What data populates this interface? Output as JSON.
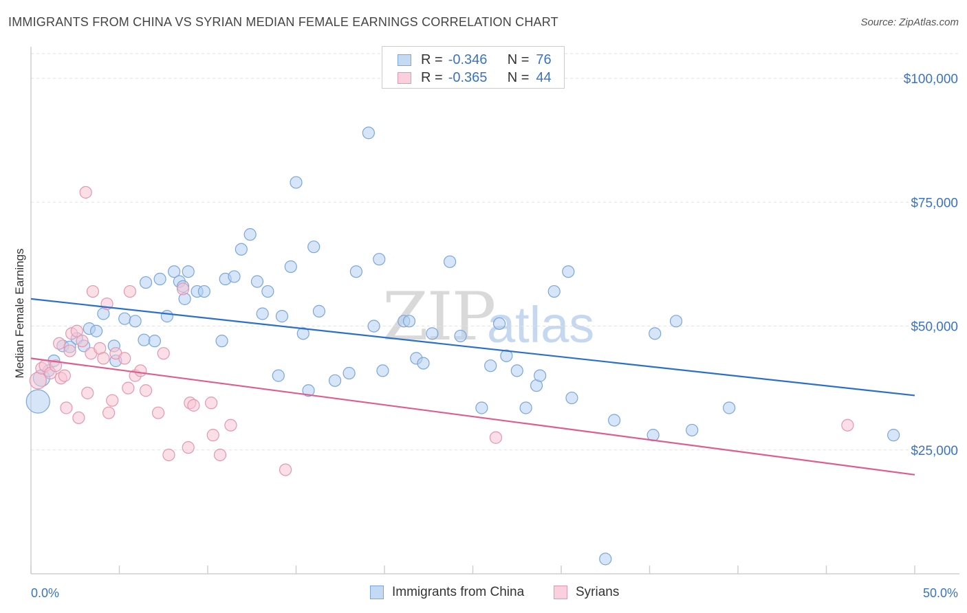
{
  "title": "IMMIGRANTS FROM CHINA VS SYRIAN MEDIAN FEMALE EARNINGS CORRELATION CHART",
  "source": "Source: ZipAtlas.com",
  "watermark": {
    "zip": "ZIP",
    "atlas": "atlas"
  },
  "legend": {
    "rows": [
      {
        "r_label": "R =",
        "r_value": "-0.346",
        "n_label": "N =",
        "n_value": "76",
        "color": "#a8c8f0",
        "border": "#7aa6dc"
      },
      {
        "r_label": "R =",
        "r_value": "-0.365",
        "n_label": "N =",
        "n_value": "44",
        "color": "#f8c4d4",
        "border": "#e696b0"
      }
    ]
  },
  "bottom_legend": [
    {
      "label": "Immigrants from China",
      "color": "#c4d9f4",
      "border": "#7aa6dc"
    },
    {
      "label": "Syrians",
      "color": "#f9d0dc",
      "border": "#e696b0"
    }
  ],
  "chart_data": {
    "type": "scatter",
    "title": "IMMIGRANTS FROM CHINA VS SYRIAN MEDIAN FEMALE EARNINGS CORRELATION CHART",
    "xlabel": "",
    "ylabel": "Median Female Earnings",
    "xlim": [
      0,
      50
    ],
    "ylim": [
      0,
      105000
    ],
    "x_tick_labels": [
      "0.0%",
      "50.0%"
    ],
    "y_ticks": [
      25000,
      50000,
      75000,
      100000
    ],
    "y_tick_labels": [
      "$25,000",
      "$50,000",
      "$75,000",
      "$100,000"
    ],
    "grid": true,
    "legend_position": "top-center",
    "series": [
      {
        "name": "Immigrants from China",
        "color": "#7aa6dc",
        "fill": "#b4cff0",
        "trend": {
          "x": [
            0,
            50
          ],
          "y": [
            55500,
            36000
          ],
          "color": "#2a6fcc"
        },
        "points": [
          [
            0.4,
            34800,
            "big"
          ],
          [
            0.6,
            39500,
            "med"
          ],
          [
            1.0,
            41000
          ],
          [
            1.3,
            43000
          ],
          [
            1.8,
            46000
          ],
          [
            2.2,
            45800
          ],
          [
            2.6,
            47500
          ],
          [
            3.0,
            46000
          ],
          [
            3.3,
            49500
          ],
          [
            3.7,
            49000
          ],
          [
            4.1,
            52500
          ],
          [
            4.7,
            46000
          ],
          [
            4.8,
            43000
          ],
          [
            5.3,
            51500
          ],
          [
            5.9,
            51000
          ],
          [
            6.4,
            47200
          ],
          [
            6.5,
            58800
          ],
          [
            7.0,
            47000
          ],
          [
            7.3,
            59500
          ],
          [
            7.7,
            52000
          ],
          [
            8.1,
            61000
          ],
          [
            8.4,
            59000
          ],
          [
            8.6,
            58000
          ],
          [
            8.7,
            55500
          ],
          [
            8.9,
            61000
          ],
          [
            9.4,
            57000
          ],
          [
            9.8,
            57000
          ],
          [
            10.8,
            47000
          ],
          [
            11.0,
            59500
          ],
          [
            11.5,
            60000
          ],
          [
            11.9,
            65500
          ],
          [
            12.4,
            68500
          ],
          [
            12.8,
            59000
          ],
          [
            13.1,
            52500
          ],
          [
            13.4,
            57000
          ],
          [
            14.0,
            40000
          ],
          [
            14.2,
            52000
          ],
          [
            14.7,
            62000
          ],
          [
            15.0,
            79000
          ],
          [
            15.4,
            48500
          ],
          [
            15.7,
            37000
          ],
          [
            16.0,
            66000
          ],
          [
            16.3,
            53000
          ],
          [
            17.2,
            39000
          ],
          [
            18.0,
            40500
          ],
          [
            18.4,
            61000
          ],
          [
            19.1,
            89000
          ],
          [
            19.4,
            50000
          ],
          [
            19.7,
            63500
          ],
          [
            19.9,
            41000
          ],
          [
            21.1,
            51000
          ],
          [
            21.4,
            51000
          ],
          [
            21.8,
            43500
          ],
          [
            22.2,
            42500
          ],
          [
            22.7,
            48500
          ],
          [
            23.7,
            63000
          ],
          [
            24.3,
            48000
          ],
          [
            25.5,
            33500
          ],
          [
            26.0,
            42000
          ],
          [
            26.5,
            50500
          ],
          [
            26.9,
            44000
          ],
          [
            27.5,
            41000
          ],
          [
            28.0,
            33500
          ],
          [
            28.6,
            38000
          ],
          [
            28.8,
            40000
          ],
          [
            29.6,
            57000
          ],
          [
            30.4,
            61000
          ],
          [
            30.6,
            35500
          ],
          [
            32.5,
            3000
          ],
          [
            33.0,
            31000
          ],
          [
            35.2,
            28000
          ],
          [
            35.3,
            48500
          ],
          [
            36.5,
            51000
          ],
          [
            37.4,
            29000
          ],
          [
            39.5,
            33500
          ],
          [
            48.8,
            28000
          ]
        ]
      },
      {
        "name": "Syrians",
        "color": "#e696b0",
        "fill": "#f8c4d4",
        "trend": {
          "x": [
            0,
            50
          ],
          "y": [
            43500,
            20000
          ],
          "color": "#e05c8c"
        },
        "points": [
          [
            0.4,
            39000,
            "med"
          ],
          [
            0.6,
            41500
          ],
          [
            0.8,
            42000
          ],
          [
            1.1,
            40500
          ],
          [
            1.4,
            42000
          ],
          [
            1.6,
            46500
          ],
          [
            1.7,
            39500
          ],
          [
            1.9,
            40000
          ],
          [
            2.0,
            33500
          ],
          [
            2.2,
            45000
          ],
          [
            2.3,
            48500
          ],
          [
            2.6,
            49000
          ],
          [
            2.7,
            31500
          ],
          [
            2.9,
            47000
          ],
          [
            3.1,
            77000
          ],
          [
            3.2,
            36500
          ],
          [
            3.4,
            44500
          ],
          [
            3.5,
            57000
          ],
          [
            3.9,
            45500
          ],
          [
            4.1,
            43500
          ],
          [
            4.3,
            54500
          ],
          [
            4.4,
            32500
          ],
          [
            4.6,
            35000
          ],
          [
            4.8,
            44500
          ],
          [
            5.3,
            43500
          ],
          [
            5.5,
            37500
          ],
          [
            5.6,
            57000
          ],
          [
            5.9,
            40000
          ],
          [
            6.2,
            41000
          ],
          [
            6.5,
            37000
          ],
          [
            7.2,
            32500
          ],
          [
            7.5,
            44500
          ],
          [
            7.8,
            24000
          ],
          [
            8.6,
            57500
          ],
          [
            8.9,
            25500
          ],
          [
            9.0,
            34500
          ],
          [
            9.2,
            34000
          ],
          [
            10.2,
            34500
          ],
          [
            10.3,
            28000
          ],
          [
            10.7,
            24000
          ],
          [
            11.3,
            30000
          ],
          [
            14.4,
            21000
          ],
          [
            26.3,
            27500
          ],
          [
            46.2,
            30000
          ]
        ]
      }
    ]
  }
}
